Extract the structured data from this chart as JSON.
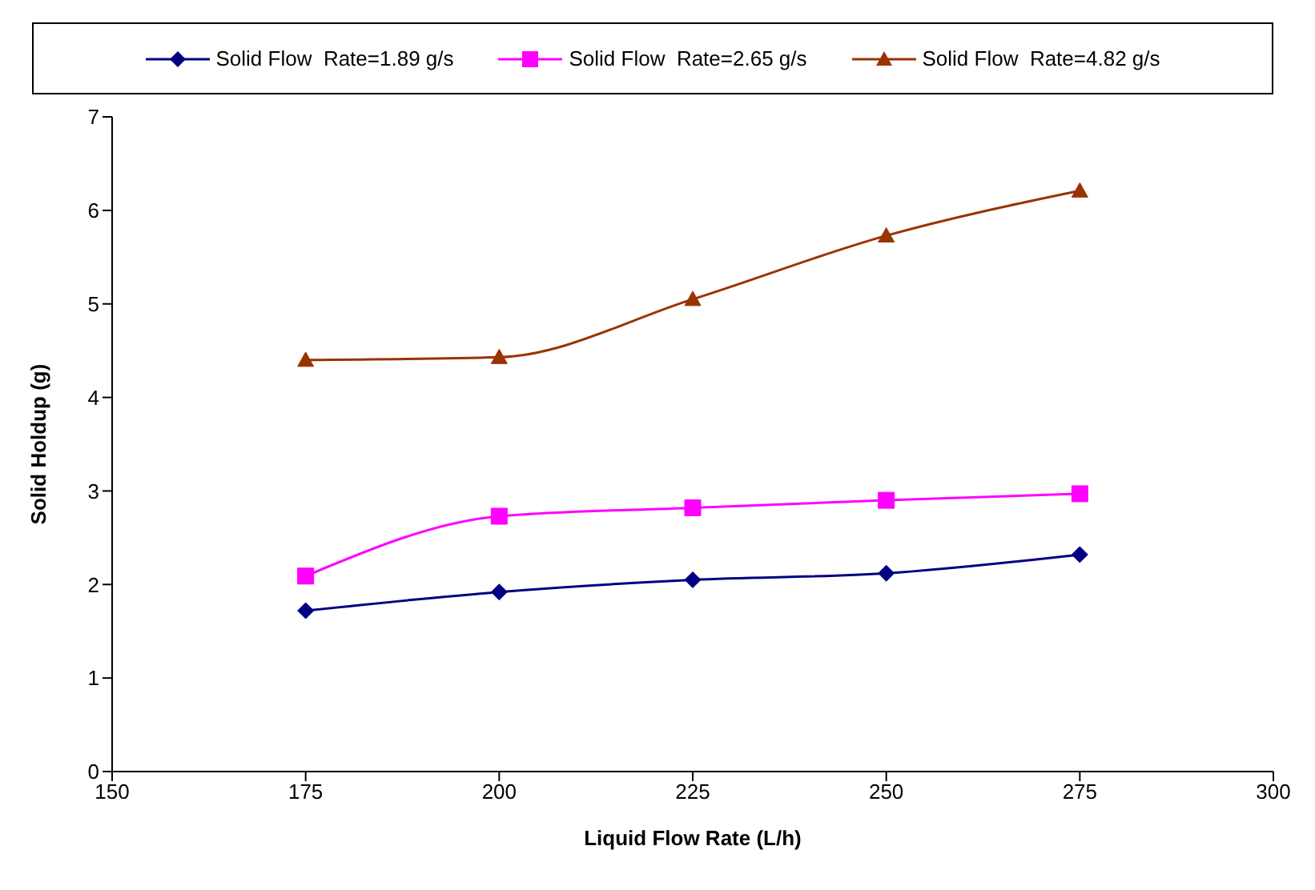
{
  "chart_data": {
    "type": "line",
    "xlabel": "Liquid Flow Rate  (L/h)",
    "ylabel": "Solid  Holdup (g)",
    "x": [
      175,
      200,
      225,
      250,
      275
    ],
    "xlim": [
      150,
      300
    ],
    "xticks": [
      150,
      175,
      200,
      225,
      250,
      275,
      300
    ],
    "ylim": [
      0,
      7
    ],
    "yticks": [
      0,
      1,
      2,
      3,
      4,
      5,
      6,
      7
    ],
    "grid": false,
    "legend": "top",
    "series": [
      {
        "name": "Solid Flow  Rate=1.89 g/s",
        "color": "#000080",
        "marker": "diamond",
        "values": [
          1.72,
          1.92,
          2.05,
          2.12,
          2.32
        ]
      },
      {
        "name": "Solid Flow  Rate=2.65 g/s",
        "color": "#ff00ff",
        "marker": "square",
        "values": [
          2.09,
          2.73,
          2.82,
          2.9,
          2.97
        ]
      },
      {
        "name": "Solid Flow  Rate=4.82 g/s",
        "color": "#993300",
        "marker": "triangle",
        "values": [
          4.4,
          4.43,
          5.05,
          5.73,
          6.21
        ]
      }
    ]
  }
}
